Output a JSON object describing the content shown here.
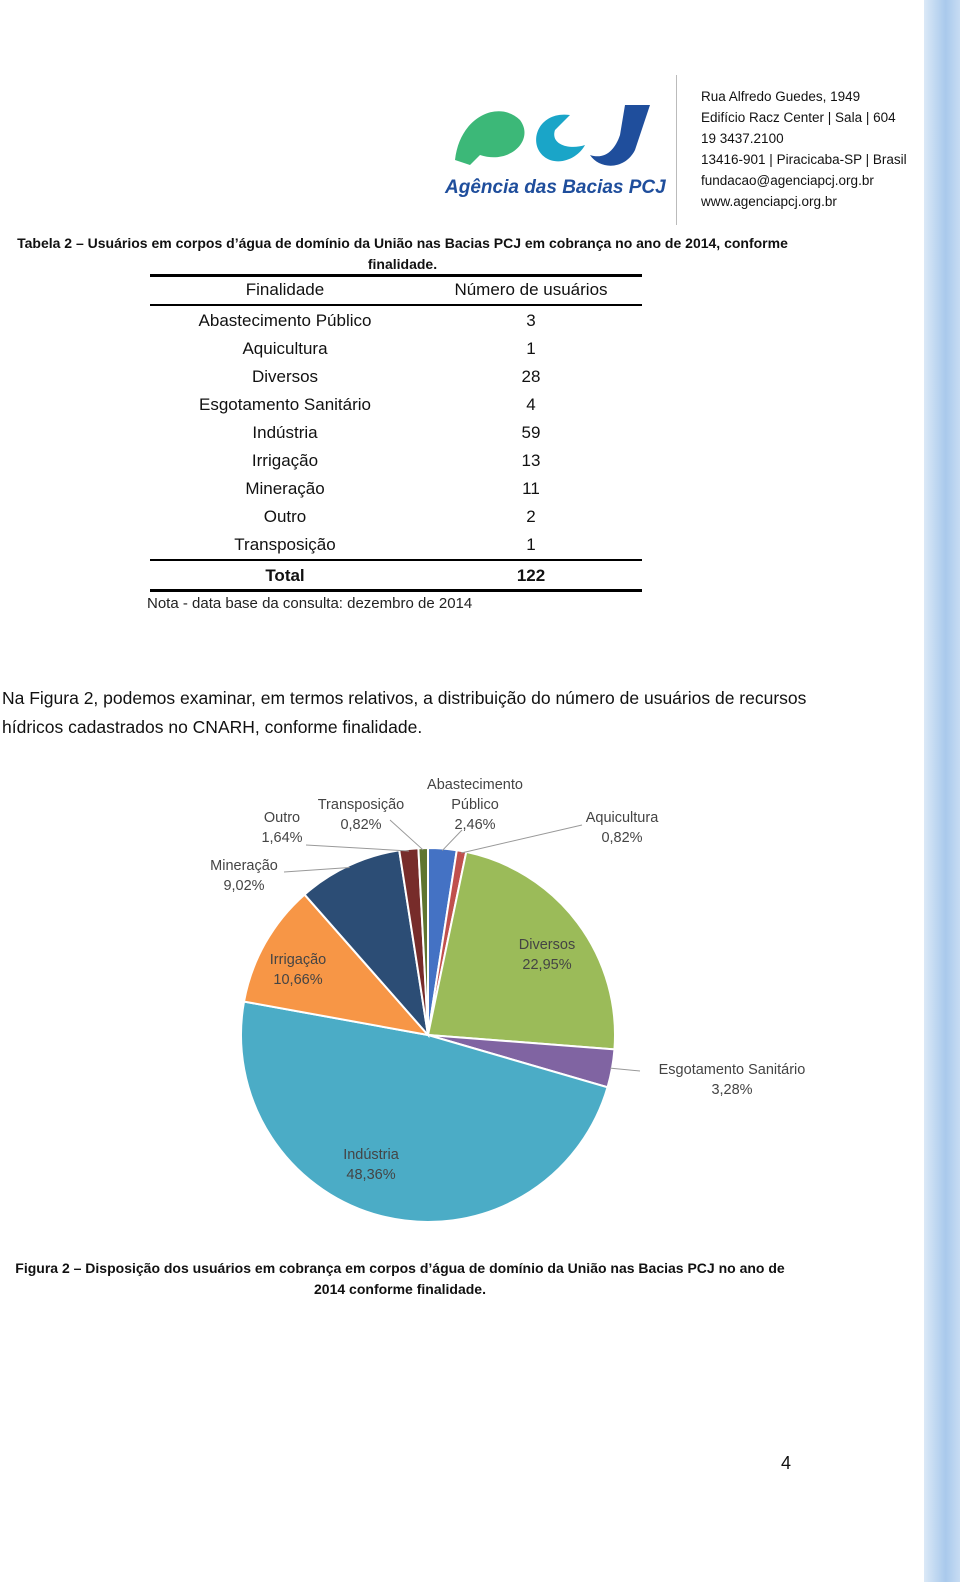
{
  "header": {
    "logo_text": "Agência das Bacias PCJ",
    "address": [
      "Rua Alfredo Guedes, 1949",
      "Edifício Racz Center | Sala | 604",
      "19 3437.2100",
      "13416-901 | Piracicaba-SP | Brasil",
      "fundacao@agenciapcj.org.br",
      "www.agenciapcj.org.br"
    ]
  },
  "table_caption": "Tabela 2 – Usuários em corpos d’água de domínio da União nas Bacias PCJ em cobrança no ano de 2014, conforme finalidade.",
  "table": {
    "header": [
      "Finalidade",
      "Número de usuários"
    ],
    "rows": [
      [
        "Abastecimento Público",
        3
      ],
      [
        "Aquicultura",
        1
      ],
      [
        "Diversos",
        28
      ],
      [
        "Esgotamento Sanitário",
        4
      ],
      [
        "Indústria",
        59
      ],
      [
        "Irrigação",
        13
      ],
      [
        "Mineração",
        11
      ],
      [
        "Outro",
        2
      ],
      [
        "Transposição",
        1
      ]
    ],
    "total": [
      "Total",
      122
    ],
    "note": "Nota - data base da consulta: dezembro de 2014"
  },
  "paragraph": "Na Figura 2, podemos examinar, em termos relativos, a distribuição do número de usuários de recursos hídricos cadastrados no CNARH, conforme finalidade.",
  "chart_data": {
    "type": "pie",
    "categories": [
      "Abastecimento Público",
      "Aquicultura",
      "Diversos",
      "Esgotamento Sanitário",
      "Indústria",
      "Irrigação",
      "Mineração",
      "Outro",
      "Transposição"
    ],
    "values": [
      2.46,
      0.82,
      22.95,
      3.28,
      48.36,
      10.66,
      9.02,
      1.64,
      0.82
    ],
    "value_labels": [
      "2,46%",
      "0,82%",
      "22,95%",
      "3,28%",
      "48,36%",
      "10,66%",
      "9,02%",
      "1,64%",
      "0,82%"
    ],
    "colors": [
      "#4472c4",
      "#c0504d",
      "#9bbb59",
      "#8064a2",
      "#4bacc6",
      "#f79646",
      "#2c4d75",
      "#772c2a",
      "#5f7530"
    ]
  },
  "figure_caption": "Figura 2 – Disposição dos usuários em cobrança em corpos d’água de domínio da União nas Bacias PCJ no ano de 2014 conforme finalidade.",
  "page_number": 4
}
